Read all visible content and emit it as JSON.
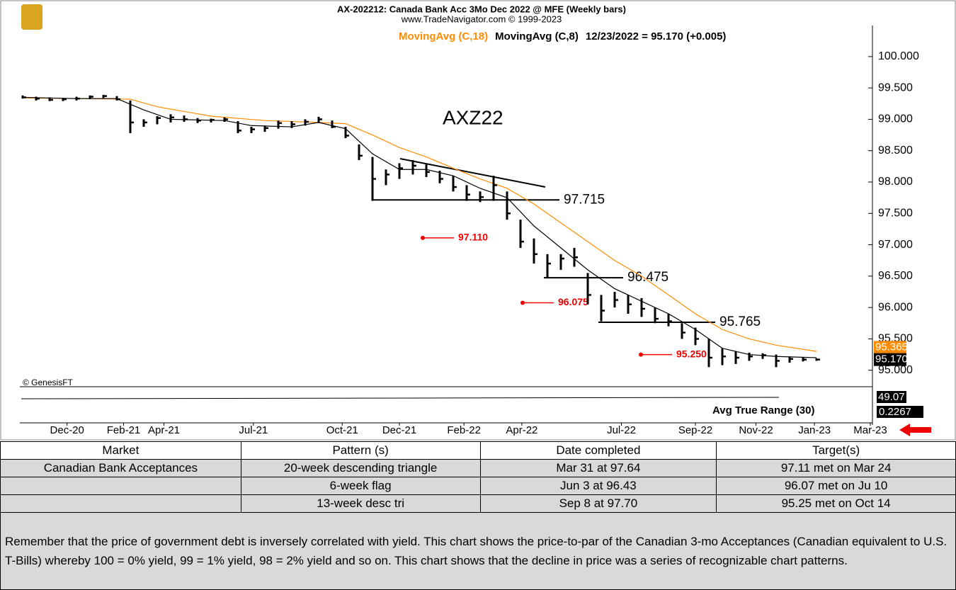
{
  "chart_data": {
    "type": "ohlc",
    "title": "AX-202212:  Canada Bank Acc 3Mo Dec 2022 @ MFE  (Weekly bars)",
    "subtitle": "www.TradeNavigator.com © 1999-2023",
    "symbol_label": "AXZ22",
    "source": "© GenesisFT",
    "last_label": "12/23/2022 = 95.170 (+0.005)",
    "price_boxes": [
      {
        "value": 95.365,
        "label": "95.365",
        "color": "#ff8c00"
      },
      {
        "value": 95.17,
        "label": "95.170",
        "color": "#000000"
      }
    ],
    "lower_panel": {
      "title": "Avg True Range (30)",
      "labels": [
        "49.07",
        "0.2267"
      ]
    },
    "x": [
      0,
      2,
      4,
      6,
      8,
      10,
      12,
      14,
      16,
      18,
      20,
      22,
      24,
      26,
      28,
      30,
      32,
      34,
      36,
      38,
      40,
      42,
      44,
      46,
      48,
      50,
      52,
      54,
      56,
      58,
      60,
      62,
      64,
      66,
      68,
      70,
      72,
      74,
      76,
      78,
      80,
      82,
      84,
      86,
      88,
      90,
      92,
      94,
      96,
      98,
      100,
      102,
      104,
      106,
      108,
      110,
      112,
      114,
      116,
      118
    ],
    "high": [
      99.38,
      99.36,
      99.35,
      99.34,
      99.36,
      99.38,
      99.39,
      99.37,
      99.3,
      99.0,
      99.05,
      99.08,
      99.06,
      99.02,
      99.01,
      99.03,
      98.97,
      98.88,
      98.9,
      98.98,
      98.97,
      99.0,
      99.04,
      98.98,
      98.88,
      98.6,
      98.4,
      98.2,
      98.3,
      98.35,
      98.28,
      98.18,
      98.1,
      97.95,
      97.85,
      98.1,
      97.85,
      97.4,
      97.1,
      96.85,
      96.85,
      96.95,
      96.55,
      96.2,
      96.25,
      96.2,
      96.15,
      96.0,
      95.9,
      95.75,
      95.68,
      95.5,
      95.35,
      95.3,
      95.28,
      95.27,
      95.25,
      95.22,
      95.2,
      95.19
    ],
    "low": [
      99.33,
      99.3,
      99.29,
      99.29,
      99.3,
      99.32,
      99.34,
      99.3,
      98.78,
      98.88,
      98.92,
      98.95,
      98.96,
      98.94,
      98.95,
      98.96,
      98.78,
      98.78,
      98.8,
      98.85,
      98.86,
      98.9,
      98.94,
      98.86,
      98.7,
      98.35,
      97.7,
      97.95,
      98.05,
      98.12,
      98.08,
      97.98,
      97.85,
      97.7,
      97.68,
      97.7,
      97.4,
      96.95,
      96.7,
      96.47,
      96.6,
      96.65,
      96.05,
      95.78,
      96.0,
      95.9,
      95.85,
      95.75,
      95.7,
      95.5,
      95.4,
      95.05,
      95.08,
      95.1,
      95.15,
      95.18,
      95.05,
      95.12,
      95.14,
      95.15
    ],
    "close": [
      99.35,
      99.33,
      99.31,
      99.32,
      99.33,
      99.36,
      99.37,
      99.32,
      98.95,
      98.95,
      99.02,
      99.03,
      99.0,
      98.98,
      98.99,
      99.0,
      98.82,
      98.84,
      98.86,
      98.94,
      98.92,
      98.96,
      99.0,
      98.88,
      98.74,
      98.42,
      98.05,
      98.12,
      98.22,
      98.26,
      98.16,
      98.05,
      97.92,
      97.8,
      97.76,
      97.95,
      97.5,
      97.05,
      96.85,
      96.7,
      96.78,
      96.8,
      96.2,
      95.95,
      96.12,
      96.05,
      95.98,
      95.82,
      95.78,
      95.6,
      95.5,
      95.2,
      95.22,
      95.2,
      95.22,
      95.24,
      95.15,
      95.18,
      95.17,
      95.17
    ],
    "series": [
      {
        "name": "MovingAvg (C,18)",
        "color": "#ff8c00",
        "x": [
          0,
          8,
          16,
          20,
          28,
          36,
          44,
          48,
          52,
          56,
          60,
          64,
          68,
          72,
          76,
          80,
          84,
          88,
          92,
          96,
          100,
          104,
          108,
          112,
          118
        ],
        "values": [
          99.34,
          99.33,
          99.32,
          99.2,
          99.05,
          98.98,
          98.95,
          98.93,
          98.75,
          98.55,
          98.4,
          98.22,
          98.05,
          97.9,
          97.65,
          97.35,
          97.05,
          96.75,
          96.5,
          96.2,
          95.9,
          95.65,
          95.5,
          95.4,
          95.3
        ]
      },
      {
        "name": "MovingAvg (C,8)",
        "color": "#000000",
        "x": [
          0,
          8,
          14,
          18,
          22,
          30,
          34,
          40,
          44,
          48,
          52,
          56,
          60,
          64,
          68,
          72,
          76,
          80,
          84,
          88,
          92,
          96,
          100,
          104,
          108,
          112,
          118
        ],
        "values": [
          99.35,
          99.33,
          99.33,
          99.15,
          99.0,
          98.98,
          98.9,
          98.88,
          98.95,
          98.85,
          98.45,
          98.2,
          98.2,
          98.1,
          97.9,
          97.75,
          97.3,
          96.95,
          96.6,
          96.3,
          96.1,
          95.9,
          95.65,
          95.35,
          95.25,
          95.22,
          95.2
        ]
      }
    ],
    "levels": [
      {
        "value": 97.715,
        "label": "97.715"
      },
      {
        "value": 96.475,
        "label": "96.475"
      },
      {
        "value": 95.765,
        "label": "95.765"
      }
    ],
    "targets": [
      {
        "value": 97.11,
        "label": "97.110"
      },
      {
        "value": 96.075,
        "label": "96.075"
      },
      {
        "value": 95.25,
        "label": "95.250"
      }
    ],
    "xlim": [
      0,
      126
    ],
    "xticks": [
      {
        "value": 6.6,
        "label": "Dec-20"
      },
      {
        "value": 15,
        "label": "Feb-21"
      },
      {
        "value": 21,
        "label": "Apr-21"
      },
      {
        "value": 34.3,
        "label": "Jul-21"
      },
      {
        "value": 47.5,
        "label": "Oct-21"
      },
      {
        "value": 56,
        "label": "Dec-21"
      },
      {
        "value": 65.6,
        "label": "Feb-22"
      },
      {
        "value": 74.2,
        "label": "Apr-22"
      },
      {
        "value": 89,
        "label": "Jul-22"
      },
      {
        "value": 100,
        "label": "Sep-22"
      },
      {
        "value": 109,
        "label": "Nov-22"
      },
      {
        "value": 117.7,
        "label": "Jan-23"
      },
      {
        "value": 126,
        "label": "Mar-23"
      }
    ],
    "ylim": [
      94.85,
      100.45
    ],
    "yticks": [
      {
        "value": 95,
        "label": "95.000"
      },
      {
        "value": 95.5,
        "label": "95.500"
      },
      {
        "value": 96,
        "label": "96.000"
      },
      {
        "value": 96.5,
        "label": "96.500"
      },
      {
        "value": 97,
        "label": "97.000"
      },
      {
        "value": 97.5,
        "label": "97.500"
      },
      {
        "value": 98,
        "label": "98.000"
      },
      {
        "value": 98.5,
        "label": "98.500"
      },
      {
        "value": 99,
        "label": "99.000"
      },
      {
        "value": 99.5,
        "label": "99.500"
      },
      {
        "value": 100,
        "label": "100.000"
      }
    ]
  },
  "table": {
    "header": [
      "Market",
      "Pattern (s)",
      "Date completed",
      "Target(s)"
    ],
    "rows": [
      [
        "Canadian Bank Acceptances",
        "20-week descending triangle",
        "Mar 31 at 97.64",
        "97.11 met on Mar 24"
      ],
      [
        null,
        "6-week flag",
        "Jun 3 at 96.43",
        "96.07 met on Ju 10"
      ],
      [
        null,
        "13-week desc tri",
        "Sep 8 at 97.70",
        "95.25 met on Oct 14"
      ]
    ],
    "note": "Remember that the price of government debt is inversely correlated with yield. This chart shows the price-to-par of the Canadian 3-mo Acceptances (Canadian equivalent to U.S. T-Bills) whereby 100 = 0% yield, 99 = 1% yield, 98 = 2% yield and so on. This chart shows that the decline in price was a series of recognizable chart patterns."
  }
}
